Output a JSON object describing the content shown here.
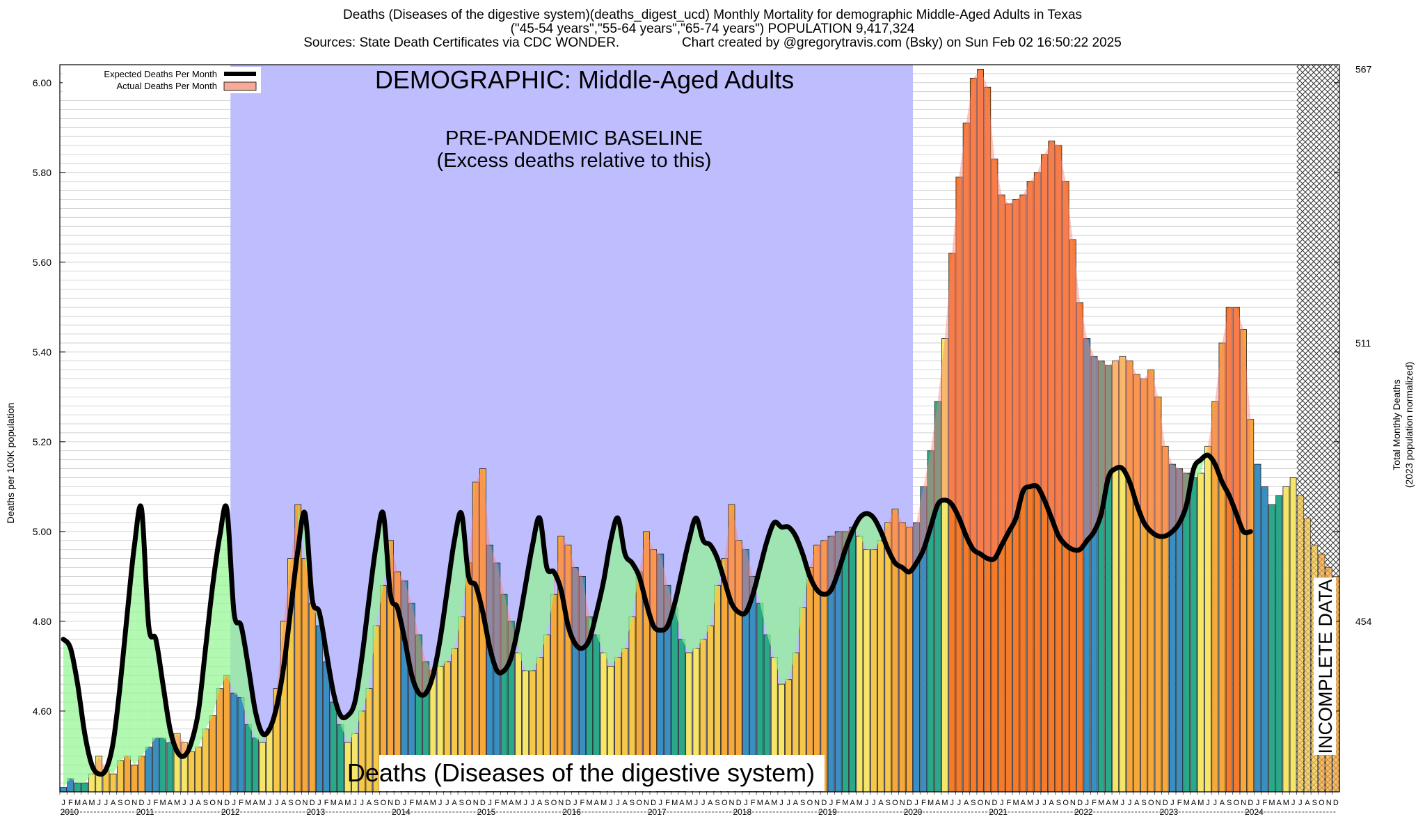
{
  "header": {
    "title_line1": "Deaths (Diseases of the digestive system)(deaths_digest_ucd) Monthly Mortality for demographic Middle-Aged Adults in Texas",
    "title_line2": "(\"45-54 years\",\"55-64 years\",\"65-74 years\") POPULATION 9,417,324",
    "title_line3": "Sources: State Death Certificates via CDC WONDER.                 Chart created by @gregorytravis.com (Bsky) on Sun Feb 02 16:50:22 2025"
  },
  "overlays": {
    "demographic_label": "DEMOGRAPHIC: Middle-Aged Adults",
    "baseline_line1": "PRE-PANDEMIC BASELINE",
    "baseline_line2": "(Excess deaths relative to this)",
    "cause_label": "Deaths (Diseases of the digestive system)",
    "incomplete_label": "INCOMPLETE DATA"
  },
  "legend": {
    "expected": "Expected Deaths Per Month",
    "actual": "Actual Deaths Per Month"
  },
  "colors": {
    "baseline_region": "#bebeff",
    "excess_fill": "#fa8070",
    "deficit_fill": "#90f590",
    "expected_line": "#000000",
    "bar_palette": [
      "#3a8fc2",
      "#2aa88a",
      "#3bbf86",
      "#f5e66a",
      "#f6c84a",
      "#f6a83a",
      "#f57a2a"
    ]
  },
  "chart_data": {
    "type": "bar",
    "title": "Deaths (Diseases of the digestive system)(deaths_digest_ucd) Monthly Mortality for demographic Middle-Aged Adults in Texas",
    "ylabel": "Deaths per 100K population",
    "y2label_line1": "Total Monthly Deaths",
    "y2label_line2": "(2023 population normalized)",
    "ylim": [
      4.42,
      6.04
    ],
    "yticks": [
      "4.60",
      "4.80",
      "5.00",
      "5.20",
      "5.40",
      "5.60",
      "5.80",
      "6.00"
    ],
    "y2ticks": [
      {
        "label": "454",
        "y": 4.8
      },
      {
        "label": "511",
        "y": 5.42
      },
      {
        "label": "567",
        "y": 6.03
      }
    ],
    "month_letters": [
      "J",
      "F",
      "M",
      "A",
      "M",
      "J",
      "J",
      "A",
      "S",
      "O",
      "N",
      "D"
    ],
    "years": [
      "2010",
      "2011",
      "2012",
      "2013",
      "2014",
      "2015",
      "2016",
      "2017",
      "2018",
      "2019",
      "2020",
      "2021",
      "2022",
      "2023",
      "2024"
    ],
    "baseline_period": {
      "start": "2012-01",
      "end": "2019-12"
    },
    "incomplete_period": {
      "start": "2024-07",
      "end": "2024-12"
    },
    "start_month": "2010-01",
    "series": [
      {
        "name": "Actual Deaths Per Month",
        "values": [
          4.43,
          4.45,
          4.44,
          4.44,
          4.46,
          4.5,
          4.47,
          4.46,
          4.49,
          4.5,
          4.48,
          4.5,
          4.52,
          4.54,
          4.54,
          4.53,
          4.55,
          4.53,
          4.51,
          4.52,
          4.56,
          4.59,
          4.65,
          4.68,
          4.64,
          4.63,
          4.57,
          4.54,
          4.53,
          4.56,
          4.65,
          4.8,
          4.94,
          5.06,
          4.94,
          4.84,
          4.79,
          4.71,
          4.62,
          4.57,
          4.53,
          4.55,
          4.6,
          4.65,
          4.79,
          4.88,
          4.98,
          4.91,
          4.89,
          4.84,
          4.77,
          4.71,
          4.69,
          4.7,
          4.71,
          4.74,
          4.81,
          4.93,
          5.11,
          5.14,
          4.97,
          4.93,
          4.86,
          4.8,
          4.73,
          4.69,
          4.69,
          4.72,
          4.77,
          4.86,
          4.99,
          4.97,
          4.92,
          4.9,
          4.81,
          4.77,
          4.73,
          4.7,
          4.72,
          4.74,
          4.81,
          4.91,
          5.0,
          4.96,
          4.95,
          4.88,
          4.83,
          4.76,
          4.73,
          4.74,
          4.76,
          4.79,
          4.88,
          4.94,
          5.06,
          4.98,
          4.96,
          4.9,
          4.84,
          4.77,
          4.72,
          4.66,
          4.67,
          4.73,
          4.83,
          4.92,
          4.97,
          4.98,
          4.99,
          5.0,
          5.0,
          5.01,
          4.99,
          4.96,
          4.96,
          4.98,
          5.02,
          5.05,
          5.02,
          5.01,
          5.02,
          5.1,
          5.18,
          5.29,
          5.43,
          5.62,
          5.79,
          5.91,
          6.01,
          6.03,
          5.99,
          5.83,
          5.75,
          5.73,
          5.74,
          5.75,
          5.78,
          5.8,
          5.84,
          5.87,
          5.86,
          5.78,
          5.65,
          5.51,
          5.43,
          5.39,
          5.38,
          5.37,
          5.38,
          5.39,
          5.38,
          5.35,
          5.34,
          5.36,
          5.3,
          5.19,
          5.15,
          5.14,
          5.13,
          5.12,
          5.13,
          5.19,
          5.29,
          5.42,
          5.5,
          5.5,
          5.45,
          5.25,
          5.15,
          5.1,
          5.06,
          5.08,
          5.1,
          5.12,
          5.08,
          5.03,
          4.97,
          4.95,
          4.92,
          4.9
        ]
      },
      {
        "name": "Expected Deaths Per Month",
        "values": [
          4.76,
          4.74,
          4.66,
          4.55,
          4.48,
          4.46,
          4.47,
          4.53,
          4.66,
          4.82,
          4.97,
          5.05,
          4.79,
          4.76,
          4.66,
          4.56,
          4.51,
          4.5,
          4.53,
          4.6,
          4.74,
          4.88,
          4.99,
          5.05,
          4.82,
          4.79,
          4.7,
          4.6,
          4.55,
          4.56,
          4.61,
          4.7,
          4.83,
          4.96,
          5.04,
          4.85,
          4.82,
          4.73,
          4.64,
          4.59,
          4.59,
          4.62,
          4.72,
          4.85,
          4.97,
          5.04,
          4.86,
          4.83,
          4.76,
          4.68,
          4.64,
          4.64,
          4.68,
          4.76,
          4.87,
          4.98,
          5.04,
          4.9,
          4.88,
          4.82,
          4.74,
          4.69,
          4.69,
          4.72,
          4.79,
          4.88,
          4.97,
          5.03,
          4.92,
          4.91,
          4.87,
          4.79,
          4.75,
          4.74,
          4.76,
          4.82,
          4.89,
          4.98,
          5.03,
          4.95,
          4.93,
          4.9,
          4.84,
          4.79,
          4.78,
          4.79,
          4.84,
          4.91,
          4.98,
          5.03,
          4.98,
          4.97,
          4.94,
          4.89,
          4.84,
          4.82,
          4.82,
          4.86,
          4.92,
          4.98,
          5.02,
          5.01,
          5.01,
          4.99,
          4.95,
          4.9,
          4.87,
          4.86,
          4.87,
          4.91,
          4.96,
          5.0,
          5.03,
          5.04,
          5.03,
          5.0,
          4.96,
          4.93,
          4.92,
          4.91,
          4.93,
          4.96,
          5.01,
          5.06,
          5.07,
          5.06,
          5.03,
          4.99,
          4.96,
          4.95,
          4.94,
          4.94,
          4.97,
          5.0,
          5.03,
          5.09,
          5.1,
          5.1,
          5.07,
          5.03,
          4.99,
          4.97,
          4.96,
          4.96,
          4.98,
          5.0,
          5.04,
          5.12,
          5.14,
          5.14,
          5.11,
          5.06,
          5.02,
          5.0,
          4.99,
          4.99,
          5.0,
          5.02,
          5.06,
          5.14,
          5.16,
          5.17,
          5.15,
          5.11,
          5.08,
          5.04,
          5.0,
          5.0
        ]
      }
    ]
  }
}
